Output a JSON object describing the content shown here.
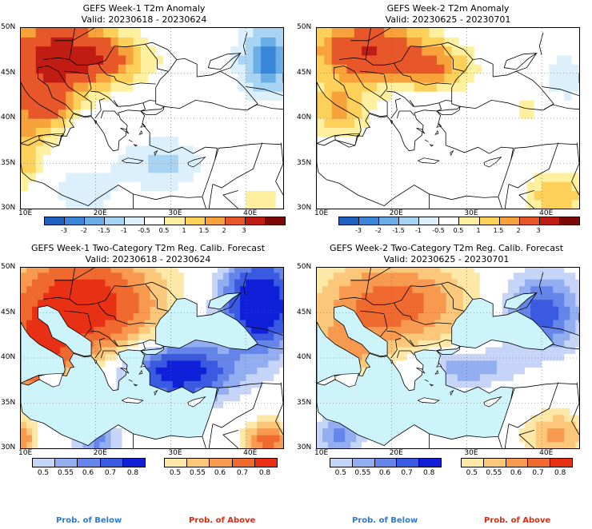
{
  "panels": [
    {
      "id": "p1",
      "title": "GEFS Week-1 T2m Anomaly",
      "subtitle": "Valid: 20230618 - 20230624"
    },
    {
      "id": "p2",
      "title": "GEFS Week-2 T2m Anomaly",
      "subtitle": "Valid: 20230625 - 20230701"
    },
    {
      "id": "p3",
      "title": "GEFS Week-1 Two-Category T2m Reg. Calib. Forecast",
      "subtitle": "Valid: 20230618 - 20230624"
    },
    {
      "id": "p4",
      "title": "GEFS Week-2 Two-Category T2m Reg. Calib. Forecast",
      "subtitle": "Valid: 20230625 - 20230701"
    }
  ],
  "axes": {
    "lat_ticks": [
      "50N",
      "45N",
      "40N",
      "35N",
      "30N"
    ],
    "lon_ticks": [
      "10E",
      "20E",
      "30E",
      "40E"
    ],
    "lon_range": [
      10,
      45
    ],
    "lat_range": [
      30,
      50
    ]
  },
  "anomaly_colorbar": {
    "labels": [
      "-3",
      "-2",
      "-1.5",
      "-1",
      "-0.5",
      "0.5",
      "1",
      "1.5",
      "2",
      "3"
    ],
    "colors": [
      "#1f5fbf",
      "#3a86d8",
      "#6aaee8",
      "#a8d3f2",
      "#dcf0fb",
      "#ffffff",
      "#fff0a0",
      "#fdd05a",
      "#f7a23a",
      "#e8572a",
      "#c01c14",
      "#7e0808"
    ]
  },
  "prob_colorbars": {
    "below": {
      "labels": [
        "0.5",
        "0.55",
        "0.6",
        "0.7",
        "0.8"
      ],
      "colors": [
        "#c6d4f7",
        "#93aef0",
        "#6585ea",
        "#3a5ae2",
        "#1020d8"
      ]
    },
    "above": {
      "labels": [
        "0.5",
        "0.55",
        "0.6",
        "0.7",
        "0.8"
      ],
      "colors": [
        "#fde8a8",
        "#fbc77a",
        "#f79a50",
        "#f06a30",
        "#e83015"
      ]
    }
  },
  "prob_legend": {
    "below": "Prob. of Below",
    "above": "Prob. of Above"
  },
  "sea_color": "#cdf3fb"
}
